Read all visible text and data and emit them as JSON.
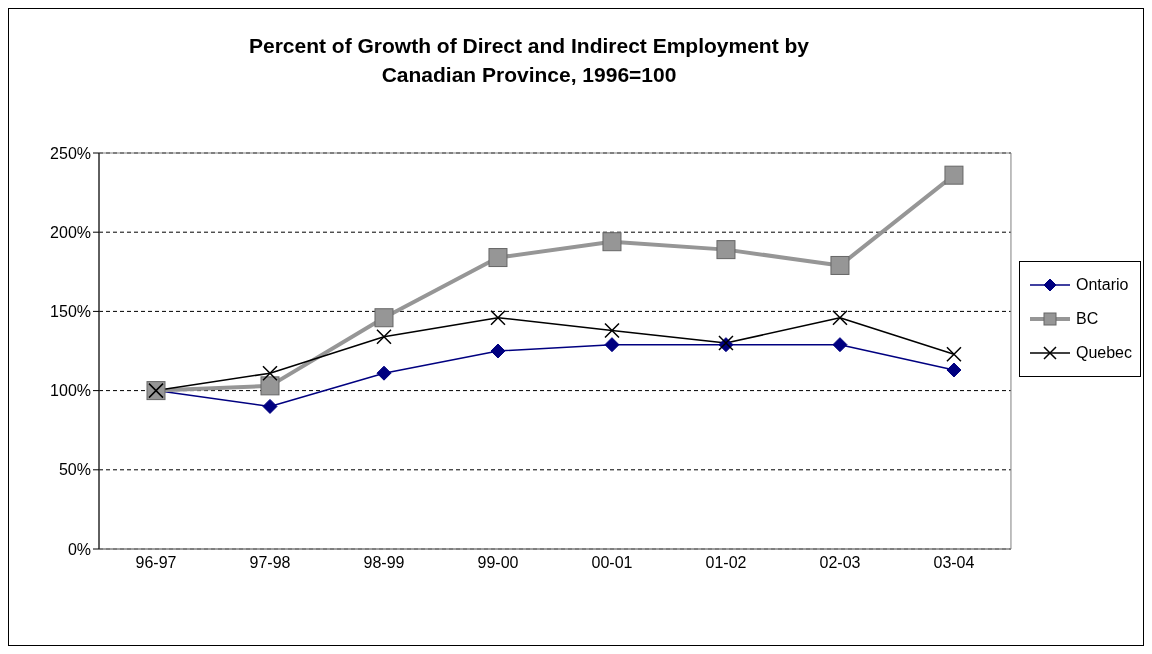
{
  "chart_data": {
    "type": "line",
    "title": "Percent of Growth of Direct and Indirect Employment by Canadian Province, 1996=100",
    "categories": [
      "96-97",
      "97-98",
      "98-99",
      "99-00",
      "00-01",
      "01-02",
      "02-03",
      "03-04"
    ],
    "series": [
      {
        "name": "Ontario",
        "color": "#000080",
        "marker": "diamond",
        "values": [
          100,
          90,
          111,
          125,
          129,
          129,
          129,
          113
        ]
      },
      {
        "name": "BC",
        "color": "#969696",
        "marker": "square",
        "values": [
          100,
          103,
          146,
          184,
          194,
          189,
          179,
          236
        ]
      },
      {
        "name": "Quebec",
        "color": "#000000",
        "marker": "cross",
        "values": [
          100,
          111,
          134,
          146,
          138,
          130,
          146,
          123
        ]
      }
    ],
    "ylim": [
      0,
      250
    ],
    "yticks": [
      {
        "value": 0,
        "label": "0%"
      },
      {
        "value": 50,
        "label": "50%"
      },
      {
        "value": 100,
        "label": "100%"
      },
      {
        "value": 150,
        "label": "150%"
      },
      {
        "value": 200,
        "label": "200%"
      },
      {
        "value": 250,
        "label": "250%"
      }
    ],
    "grid": "y",
    "legend": "right"
  }
}
